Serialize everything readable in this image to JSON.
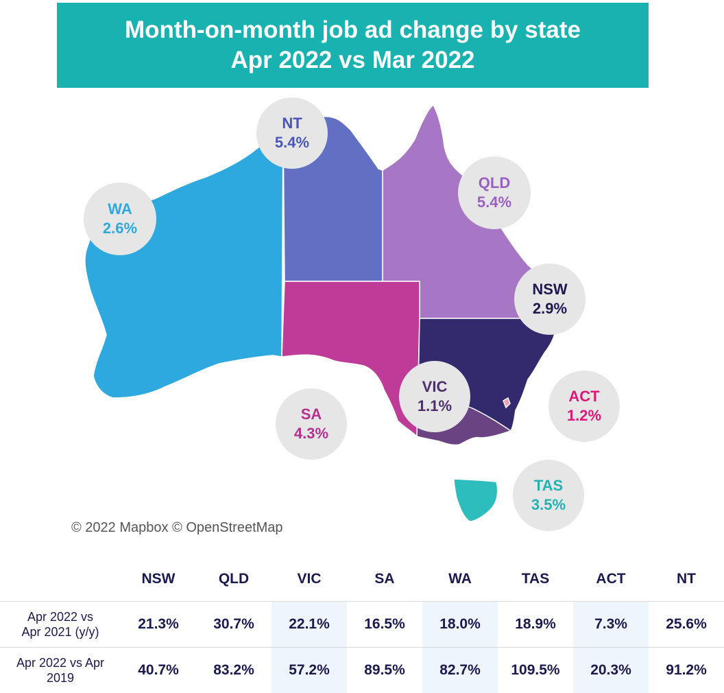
{
  "title": {
    "line1": "Month-on-month job ad change by state",
    "line2": "Apr 2022 vs Mar 2022"
  },
  "map": {
    "regions": [
      {
        "code": "WA",
        "value": "2.6%",
        "color": "#2ea9df",
        "label_color": "#2ea9df"
      },
      {
        "code": "NT",
        "value": "5.4%",
        "color": "#6270c4",
        "label_color": "#4a55b5"
      },
      {
        "code": "QLD",
        "value": "5.4%",
        "color": "#a777c6",
        "label_color": "#9a5fc2"
      },
      {
        "code": "NSW",
        "value": "2.9%",
        "color": "#332a6e",
        "label_color": "#1e1850"
      },
      {
        "code": "SA",
        "value": "4.3%",
        "color": "#bf3b98",
        "label_color": "#b8308f"
      },
      {
        "code": "VIC",
        "value": "1.1%",
        "color": "#6a4482",
        "label_color": "#4c2f6b"
      },
      {
        "code": "ACT",
        "value": "1.2%",
        "color": "#e8a0b4",
        "label_color": "#e0177b"
      },
      {
        "code": "TAS",
        "value": "3.5%",
        "color": "#2dbdbc",
        "label_color": "#21b3b3"
      }
    ],
    "attribution": "© 2022 Mapbox © OpenStreetMap"
  },
  "table": {
    "columns": [
      "NSW",
      "QLD",
      "VIC",
      "SA",
      "WA",
      "TAS",
      "ACT",
      "NT"
    ],
    "rows": [
      {
        "label_line1": "Apr 2022 vs",
        "label_line2": "Apr 2021 (y/y)",
        "values": [
          "21.3%",
          "30.7%",
          "22.1%",
          "16.5%",
          "18.0%",
          "18.9%",
          "7.3%",
          "25.6%"
        ]
      },
      {
        "label_line1": "Apr 2022 vs Apr",
        "label_line2": "2019",
        "values": [
          "40.7%",
          "83.2%",
          "57.2%",
          "89.5%",
          "82.7%",
          "109.5%",
          "20.3%",
          "91.2%"
        ]
      }
    ]
  }
}
